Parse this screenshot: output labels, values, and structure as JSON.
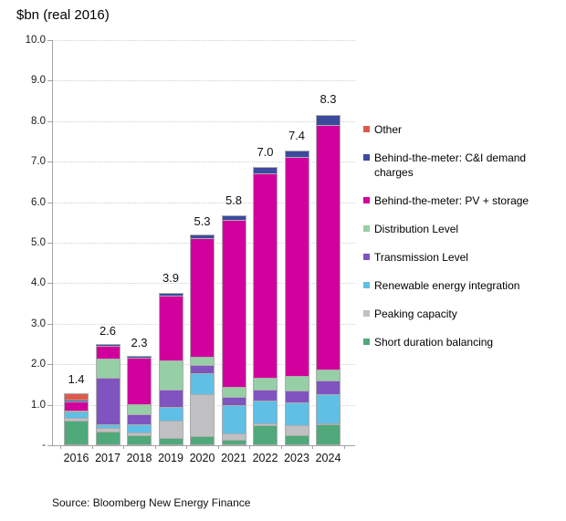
{
  "title": "$bn (real 2016)",
  "source": "Source: Bloomberg New Energy Finance",
  "chart_data": {
    "type": "bar",
    "stacked": true,
    "title": "$bn (real 2016)",
    "xlabel": "",
    "ylabel": "$bn (real 2016)",
    "ylim": [
      0,
      10
    ],
    "ytick_step": 1.0,
    "ytick_labels": [
      "-",
      "1.0",
      "2.0",
      "3.0",
      "4.0",
      "5.0",
      "6.0",
      "7.0",
      "8.0",
      "9.0",
      "10.0"
    ],
    "grid": "dotted-horizontal",
    "legend_position": "right",
    "categories": [
      "2016",
      "2017",
      "2018",
      "2019",
      "2020",
      "2021",
      "2022",
      "2023",
      "2024"
    ],
    "bar_total_labels": [
      "1.4",
      "2.6",
      "2.3",
      "3.9",
      "5.3",
      "5.8",
      "7.0",
      "7.4",
      "8.3"
    ],
    "series": [
      {
        "name": "Short duration balancing",
        "color": "#4fa97a",
        "values": [
          0.6,
          0.33,
          0.25,
          0.18,
          0.22,
          0.14,
          0.49,
          0.25,
          0.52
        ]
      },
      {
        "name": "Peaking capacity",
        "color": "#c0c0c2",
        "values": [
          0.09,
          0.11,
          0.08,
          0.45,
          1.05,
          0.19,
          0.07,
          0.27,
          0.04
        ]
      },
      {
        "name": "Renewable energy integration",
        "color": "#5fbfe5",
        "values": [
          0.18,
          0.11,
          0.22,
          0.37,
          0.53,
          0.71,
          0.58,
          0.58,
          0.75
        ]
      },
      {
        "name": "Transmission Level",
        "color": "#7f54bf",
        "values": [
          0.0,
          1.16,
          0.26,
          0.45,
          0.22,
          0.22,
          0.29,
          0.31,
          0.37
        ]
      },
      {
        "name": "Distribution Level",
        "color": "#96cfa6",
        "values": [
          0.04,
          0.49,
          0.26,
          0.75,
          0.22,
          0.26,
          0.31,
          0.38,
          0.3
        ]
      },
      {
        "name": "Behind-the-meter: PV + storage",
        "color": "#d1009c",
        "values": [
          0.25,
          0.34,
          1.17,
          1.62,
          2.95,
          4.15,
          5.07,
          5.42,
          6.06
        ]
      },
      {
        "name": "Behind-the-meter: C&I demand charges",
        "color": "#3c4a9e",
        "values": [
          0.06,
          0.06,
          0.06,
          0.08,
          0.11,
          0.13,
          0.19,
          0.19,
          0.26
        ]
      },
      {
        "name": "Other",
        "color": "#dd5a4c",
        "values": [
          0.18,
          0.0,
          0.0,
          0.0,
          0.0,
          0.0,
          0.0,
          0.0,
          0.0
        ]
      }
    ]
  },
  "legend": {
    "items": [
      {
        "label": "Other",
        "color": "#dd5a4c"
      },
      {
        "label": "Behind-the-meter: C&I demand charges",
        "color": "#3c4a9e"
      },
      {
        "label": "Behind-the-meter: PV + storage",
        "color": "#d1009c"
      },
      {
        "label": "Distribution Level",
        "color": "#96cfa6"
      },
      {
        "label": "Transmission Level",
        "color": "#7f54bf"
      },
      {
        "label": "Renewable energy integration",
        "color": "#5fbfe5"
      },
      {
        "label": "Peaking capacity",
        "color": "#c0c0c2"
      },
      {
        "label": "Short duration balancing",
        "color": "#4fa97a"
      }
    ]
  }
}
